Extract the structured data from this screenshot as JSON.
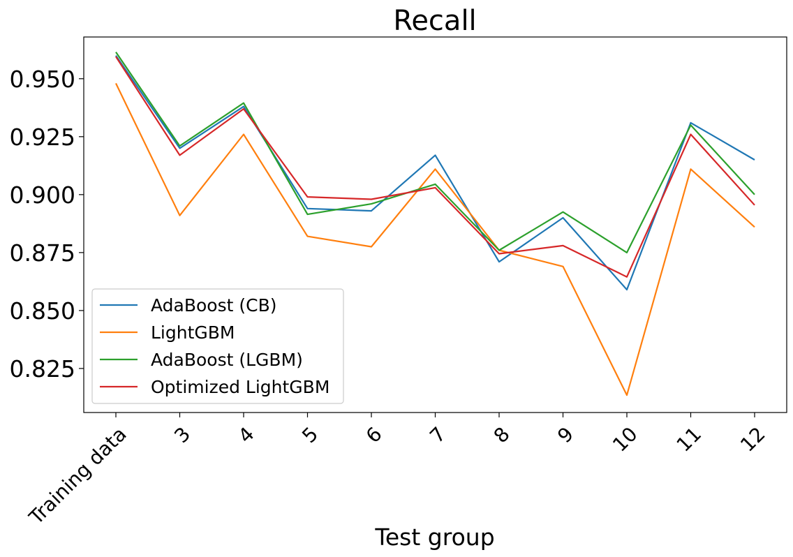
{
  "chart_data": {
    "type": "line",
    "title": "Recall",
    "xlabel": "Test group",
    "ylabel": "",
    "categories": [
      "Training data",
      "3",
      "4",
      "5",
      "6",
      "7",
      "8",
      "9",
      "10",
      "11",
      "12"
    ],
    "ylim": [
      0.806,
      0.968
    ],
    "yticks": [
      "0.825",
      "0.850",
      "0.875",
      "0.900",
      "0.925",
      "0.950"
    ],
    "grid": false,
    "legend_position": "lower-left",
    "series": [
      {
        "name": "AdaBoost (CB)",
        "color": "#1f77b4",
        "values": [
          0.96,
          0.92,
          0.938,
          0.894,
          0.893,
          0.917,
          0.871,
          0.89,
          0.859,
          0.931,
          0.915
        ]
      },
      {
        "name": "LightGBM",
        "color": "#ff7f0e",
        "values": [
          0.948,
          0.891,
          0.926,
          0.882,
          0.8775,
          0.911,
          0.876,
          0.869,
          0.8135,
          0.911,
          0.886
        ]
      },
      {
        "name": "AdaBoost (LGBM)",
        "color": "#2ca02c",
        "values": [
          0.9615,
          0.921,
          0.9395,
          0.8915,
          0.896,
          0.9045,
          0.876,
          0.8925,
          0.875,
          0.93,
          0.9
        ]
      },
      {
        "name": "Optimized LightGBM",
        "color": "#d62728",
        "values": [
          0.9595,
          0.917,
          0.937,
          0.899,
          0.898,
          0.903,
          0.8745,
          0.878,
          0.8645,
          0.926,
          0.8955
        ]
      }
    ]
  }
}
